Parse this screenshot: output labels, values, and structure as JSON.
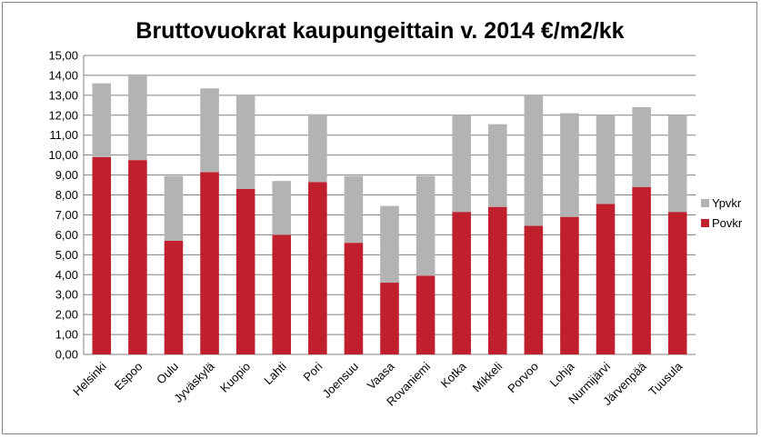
{
  "chart_data": {
    "type": "bar",
    "stacked": true,
    "title": "Bruttovuokrat kaupungeittain v. 2014 €/m2/kk",
    "xlabel": "",
    "ylabel": "",
    "ylim": [
      0,
      15
    ],
    "ytick_step": 1,
    "ytick_labels": [
      "0,00",
      "1,00",
      "2,00",
      "3,00",
      "4,00",
      "5,00",
      "6,00",
      "7,00",
      "8,00",
      "9,00",
      "10,00",
      "11,00",
      "12,00",
      "13,00",
      "14,00",
      "15,00"
    ],
    "grid": true,
    "legend_position": "right",
    "categories": [
      "Helsinki",
      "Espoo",
      "Oulu",
      "Jyväskylä",
      "Kuopio",
      "Lahti",
      "Pori",
      "Joensuu",
      "Vaasa",
      "Rovaniemi",
      "Kotka",
      "Mikkeli",
      "Porvoo",
      "Lohja",
      "Nurmijärvi",
      "Järvenpää",
      "Tuusula"
    ],
    "series": [
      {
        "name": "Povkr",
        "color": "#c0202e",
        "values": [
          9.9,
          9.75,
          5.7,
          9.15,
          8.3,
          6.0,
          8.65,
          5.6,
          3.6,
          3.95,
          7.15,
          7.4,
          6.45,
          6.9,
          7.55,
          8.4,
          7.15
        ]
      },
      {
        "name": "Ypvkr",
        "color": "#b3b3b3",
        "values": [
          3.7,
          4.3,
          3.25,
          4.2,
          4.7,
          2.7,
          3.4,
          3.35,
          3.85,
          5.0,
          4.85,
          4.15,
          6.55,
          5.2,
          4.45,
          4.0,
          4.85
        ]
      }
    ]
  }
}
